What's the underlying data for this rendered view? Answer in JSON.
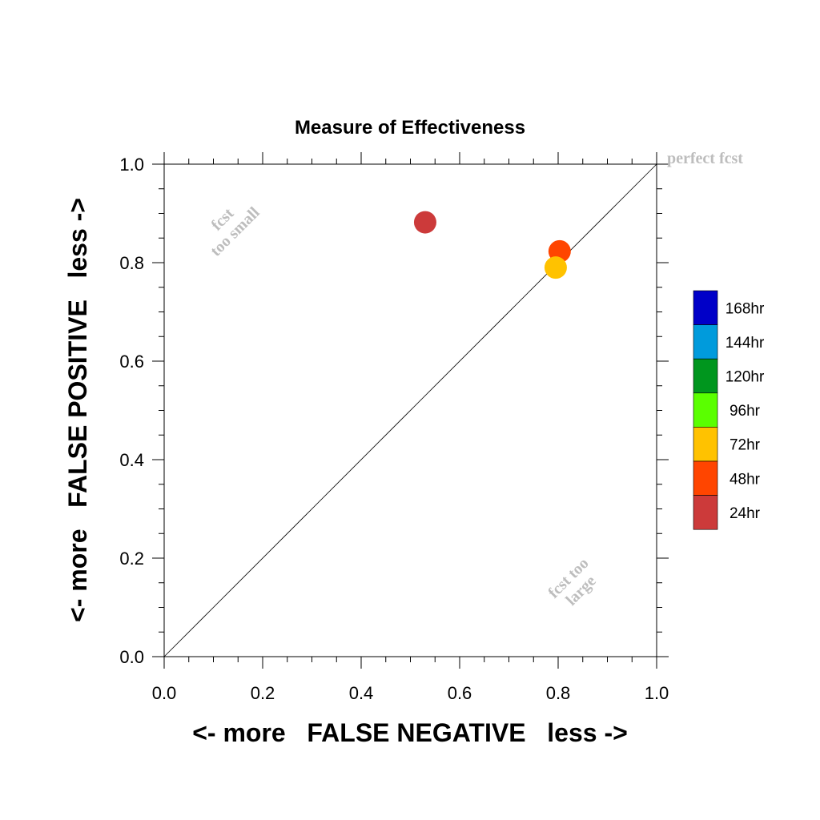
{
  "chart_data": {
    "type": "scatter",
    "title": "Measure of Effectiveness",
    "xlabel": "<- more   FALSE NEGATIVE   less ->",
    "ylabel": "<- more   FALSE POSITIVE   less ->",
    "xlim": [
      0.0,
      1.0
    ],
    "ylim": [
      0.0,
      1.0
    ],
    "xticks": [
      "0.0",
      "0.2",
      "0.4",
      "0.6",
      "0.8",
      "1.0"
    ],
    "yticks": [
      "0.0",
      "0.2",
      "0.4",
      "0.6",
      "0.8",
      "1.0"
    ],
    "grid": false,
    "reference_line": "diagonal",
    "annotations": {
      "perfect": "perfect fcst",
      "small_line1": "fcst",
      "small_line2": "too small",
      "large_line1": "fcst too",
      "large_line2": "large"
    },
    "points": [
      {
        "label": "24hr",
        "x": 0.53,
        "y": 0.882,
        "color": "#cc3a3a"
      },
      {
        "label": "48hr",
        "x": 0.803,
        "y": 0.823,
        "color": "#ff4500"
      },
      {
        "label": "72hr",
        "x": 0.795,
        "y": 0.79,
        "color": "#ffc200"
      }
    ],
    "legend": {
      "placement": "right",
      "entries": [
        {
          "label": "168hr",
          "color": "#0000c8"
        },
        {
          "label": "144hr",
          "color": "#009bdc"
        },
        {
          "label": "120hr",
          "color": "#00961e"
        },
        {
          "label": "96hr",
          "color": "#5aff00"
        },
        {
          "label": "72hr",
          "color": "#ffc200"
        },
        {
          "label": "48hr",
          "color": "#ff4500"
        },
        {
          "label": "24hr",
          "color": "#cc3a3a"
        }
      ]
    }
  }
}
